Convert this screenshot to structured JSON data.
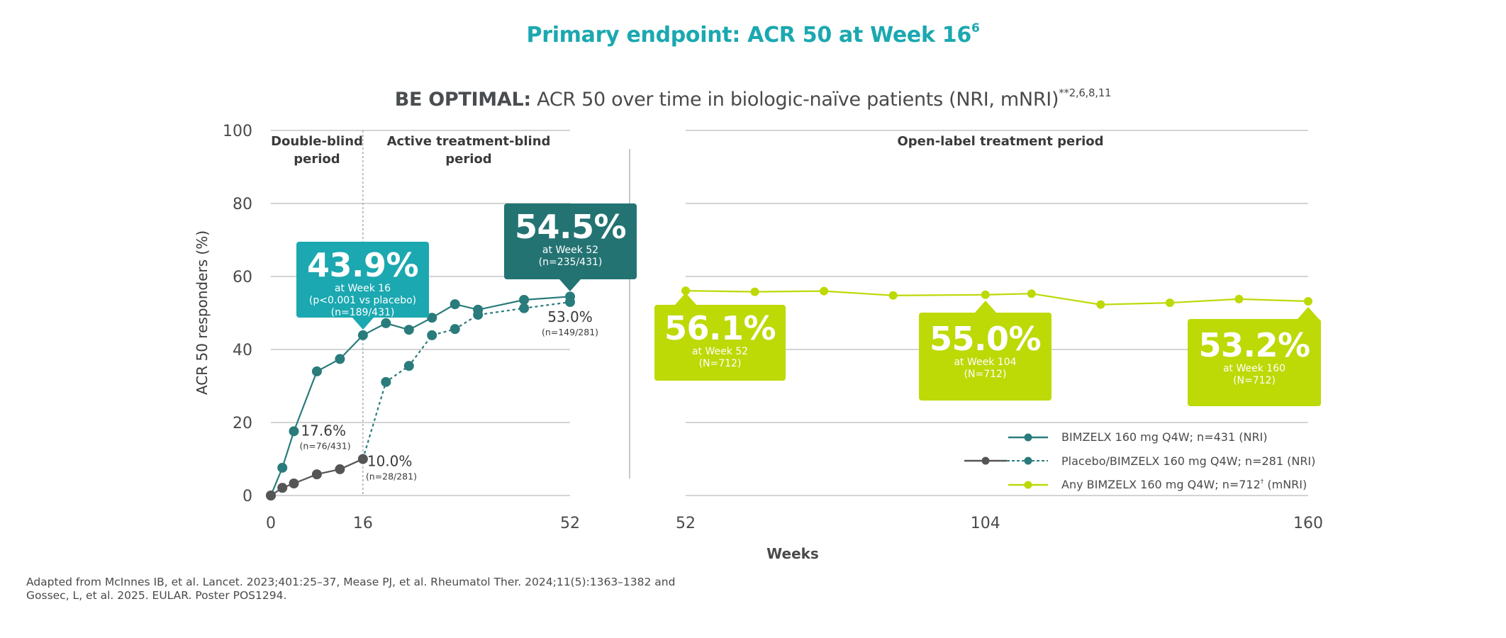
{
  "title": {
    "text": "Primary endpoint: ACR 50 at Week 16",
    "sup": "6"
  },
  "subtitle": {
    "bold": "BE OPTIMAL:",
    "text": " ACR 50 over time in biologic-naïve patients (NRI, mNRI)",
    "sup": "**2,6,8,11"
  },
  "colors": {
    "teal": "#1ba8b0",
    "dark_teal": "#247373",
    "series_teal": "#2a7b7b",
    "placebo": "#555555",
    "lime": "#bdd906",
    "grid": "#d4d4d4",
    "title": "#1ba8b0"
  },
  "chart_data": {
    "type": "line",
    "title": "BE OPTIMAL: ACR 50 over time in biologic-naïve patients (NRI, mNRI)",
    "xlabel": "Weeks",
    "ylabel": "ACR 50 responders (%)",
    "ylim": [
      0,
      100
    ],
    "yticks": [
      "0",
      "20",
      "40",
      "60",
      "80",
      "100"
    ],
    "xticks_left": [
      "0",
      "16",
      "52"
    ],
    "xticks_right": [
      "52",
      "104",
      "160"
    ],
    "panels": [
      {
        "name": "left",
        "xlim": [
          0,
          52
        ]
      },
      {
        "name": "right",
        "xlim": [
          52,
          160
        ]
      }
    ],
    "periods": [
      "Double-blind period",
      "Active treatment-blind period",
      "Open-label treatment period"
    ],
    "period_lines": [
      [
        "Double-blind",
        "period"
      ],
      [
        "Active treatment-blind",
        "period"
      ],
      [
        "Open-label treatment period"
      ]
    ],
    "grid": true,
    "legend_position": "bottom-right",
    "series": [
      {
        "name": "BIMZELX 160 mg Q4W; n=431 (NRI)",
        "panel": "left",
        "style": "solid",
        "color": "#2a7b7b",
        "x": [
          0,
          2,
          4,
          8,
          12,
          16,
          20,
          24,
          28,
          32,
          36,
          44,
          52
        ],
        "y": [
          0,
          7.6,
          17.6,
          34.0,
          37.4,
          43.9,
          47.2,
          45.4,
          48.7,
          52.4,
          50.9,
          53.6,
          54.5
        ]
      },
      {
        "name": "Placebo",
        "panel": "left",
        "style": "solid",
        "color": "#555555",
        "x": [
          0,
          2,
          4,
          8,
          12,
          16
        ],
        "y": [
          0,
          2.1,
          3.3,
          5.8,
          7.2,
          10.0
        ]
      },
      {
        "name": "Placebo/BIMZELX 160 mg Q4W; n=281 (NRI)",
        "panel": "left",
        "style": "dashed",
        "color": "#2a7b7b",
        "x": [
          16,
          20,
          24,
          28,
          32,
          36,
          44,
          52
        ],
        "y": [
          10.0,
          31.1,
          35.5,
          43.9,
          45.6,
          49.5,
          51.3,
          53.0
        ]
      },
      {
        "name": "Any BIMZELX 160 mg Q4W; n=712† (mNRI)",
        "panel": "right",
        "style": "solid",
        "color": "#bdd906",
        "x": [
          52,
          64,
          76,
          88,
          104,
          112,
          124,
          136,
          148,
          160
        ],
        "y": [
          56.1,
          55.8,
          56.0,
          54.8,
          55.0,
          55.3,
          52.3,
          52.8,
          53.8,
          53.2
        ]
      }
    ],
    "point_labels": [
      {
        "value": "17.6%",
        "sub": "(n=76/431)",
        "x": 4,
        "y": 17.6
      },
      {
        "value": "10.0%",
        "sub": "(n=28/281)",
        "x": 16,
        "y": 10.0
      },
      {
        "value": "53.0%",
        "sub": "(n=149/281)",
        "x": 52,
        "y": 53.0
      }
    ],
    "callouts": [
      {
        "value": "43.9%",
        "lines": [
          "at Week 16",
          "(p<0.001 vs placebo)",
          "(n=189/431)"
        ],
        "x": 16,
        "y": 43.9,
        "color": "#1ba8b0"
      },
      {
        "value": "54.5%",
        "lines": [
          "at Week 52",
          "(n=235/431)"
        ],
        "x": 52,
        "y": 54.5,
        "color": "#247373"
      },
      {
        "value": "56.1%",
        "lines": [
          "at Week 52",
          "(N=712)"
        ],
        "x": 52,
        "y": 56.1,
        "color": "#bdd906"
      },
      {
        "value": "55.0%",
        "lines": [
          "at Week 104",
          "(N=712)"
        ],
        "x": 104,
        "y": 55.0,
        "color": "#bdd906"
      },
      {
        "value": "53.2%",
        "lines": [
          "at Week 160",
          "(N=712)"
        ],
        "x": 160,
        "y": 53.2,
        "color": "#bdd906"
      }
    ]
  },
  "legend": [
    {
      "label": "BIMZELX 160 mg Q4W; n=431 (NRI)",
      "sup": "",
      "suffix": ""
    },
    {
      "label": "Placebo/BIMZELX 160 mg Q4W; n=281 (NRI)",
      "sup": "",
      "suffix": ""
    },
    {
      "label": "Any BIMZELX 160 mg Q4W; n=712",
      "sup": "†",
      "suffix": " (mNRI)"
    }
  ],
  "footnote": {
    "line1": "Adapted from McInnes IB, et al. Lancet. 2023;401:25–37, Mease PJ, et al. Rheumatol Ther. 2024;11(5):1363–1382 and",
    "line2": "Gossec, L, et al. 2025. EULAR. Poster POS1294."
  }
}
